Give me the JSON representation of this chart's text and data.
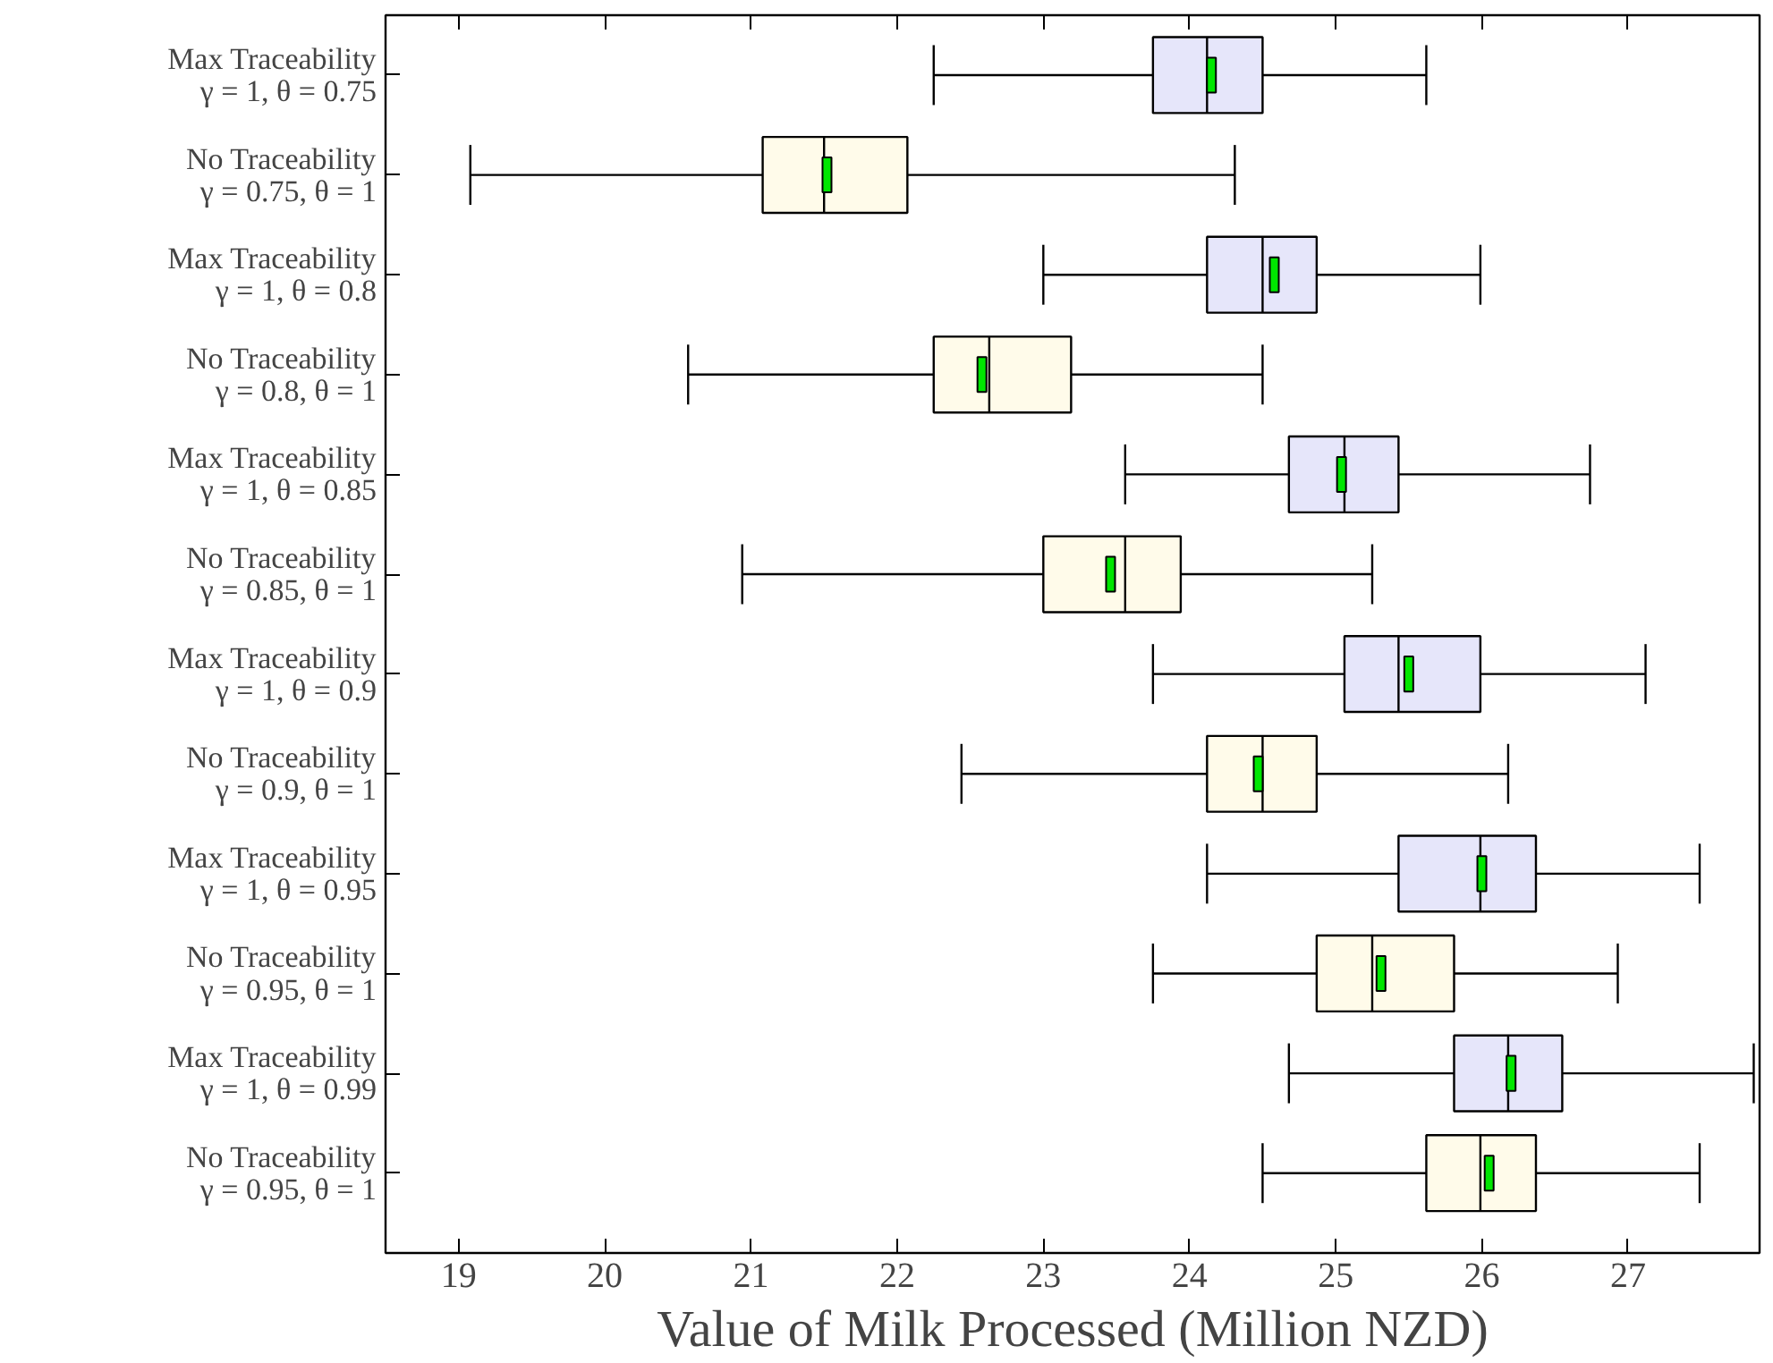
{
  "chart_data": {
    "type": "box",
    "orientation": "horizontal",
    "xlabel": "Value of Milk Processed (Million NZD)",
    "categories": [
      "Max Traceability\nγ = 1, θ = 0.75",
      "No Traceability\nγ = 0.75, θ = 1",
      "Max Traceability\nγ = 1, θ = 0.8",
      "No Traceability\nγ = 0.8, θ = 1",
      "Max Traceability\nγ = 1, θ = 0.85",
      "No Traceability\nγ = 0.85, θ = 1",
      "Max Traceability\nγ = 1, θ = 0.9",
      "No Traceability\nγ = 0.9, θ = 1",
      "Max Traceability\nγ = 1, θ = 0.95",
      "No Traceability\nγ = 0.95, θ = 1",
      "Max Traceability\nγ = 1, θ = 0.99",
      "No Traceability\nγ = 0.95, θ = 1"
    ],
    "colors": [
      "#e6e6fa",
      "#fffbea",
      "#e6e6fa",
      "#fffbea",
      "#e6e6fa",
      "#fffbea",
      "#e6e6fa",
      "#fffbea",
      "#e6e6fa",
      "#fffbea",
      "#e6e6fa",
      "#fffbea"
    ],
    "boxes": [
      {
        "low": 22.25,
        "q1": 23.75,
        "median": 24.12,
        "q3": 24.5,
        "high": 25.62,
        "mean": 24.15
      },
      {
        "low": 19.08,
        "q1": 21.08,
        "median": 21.5,
        "q3": 22.07,
        "high": 24.31,
        "mean": 21.52
      },
      {
        "low": 23.0,
        "q1": 24.12,
        "median": 24.5,
        "q3": 24.87,
        "high": 25.99,
        "mean": 24.58
      },
      {
        "low": 20.57,
        "q1": 22.25,
        "median": 22.63,
        "q3": 23.19,
        "high": 24.5,
        "mean": 22.58
      },
      {
        "low": 23.56,
        "q1": 24.68,
        "median": 25.06,
        "q3": 25.43,
        "high": 26.74,
        "mean": 25.04
      },
      {
        "low": 20.94,
        "q1": 23.0,
        "median": 23.56,
        "q3": 23.94,
        "high": 25.25,
        "mean": 23.46
      },
      {
        "low": 23.75,
        "q1": 25.06,
        "median": 25.43,
        "q3": 25.99,
        "high": 27.12,
        "mean": 25.5
      },
      {
        "low": 22.44,
        "q1": 24.12,
        "median": 24.5,
        "q3": 24.87,
        "high": 26.18,
        "mean": 24.47
      },
      {
        "low": 24.12,
        "q1": 25.43,
        "median": 25.99,
        "q3": 26.37,
        "high": 27.49,
        "mean": 26.0
      },
      {
        "low": 23.75,
        "q1": 24.87,
        "median": 25.25,
        "q3": 25.81,
        "high": 26.93,
        "mean": 25.31
      },
      {
        "low": 24.68,
        "q1": 25.81,
        "median": 26.18,
        "q3": 26.55,
        "high": 27.86,
        "mean": 26.2
      },
      {
        "low": 24.5,
        "q1": 25.62,
        "median": 25.99,
        "q3": 26.37,
        "high": 27.49,
        "mean": 26.05
      }
    ],
    "xlim": [
      18.5,
      27.9
    ],
    "xticks": [
      19,
      20,
      21,
      22,
      23,
      24,
      25,
      26,
      27
    ],
    "grid": false
  }
}
